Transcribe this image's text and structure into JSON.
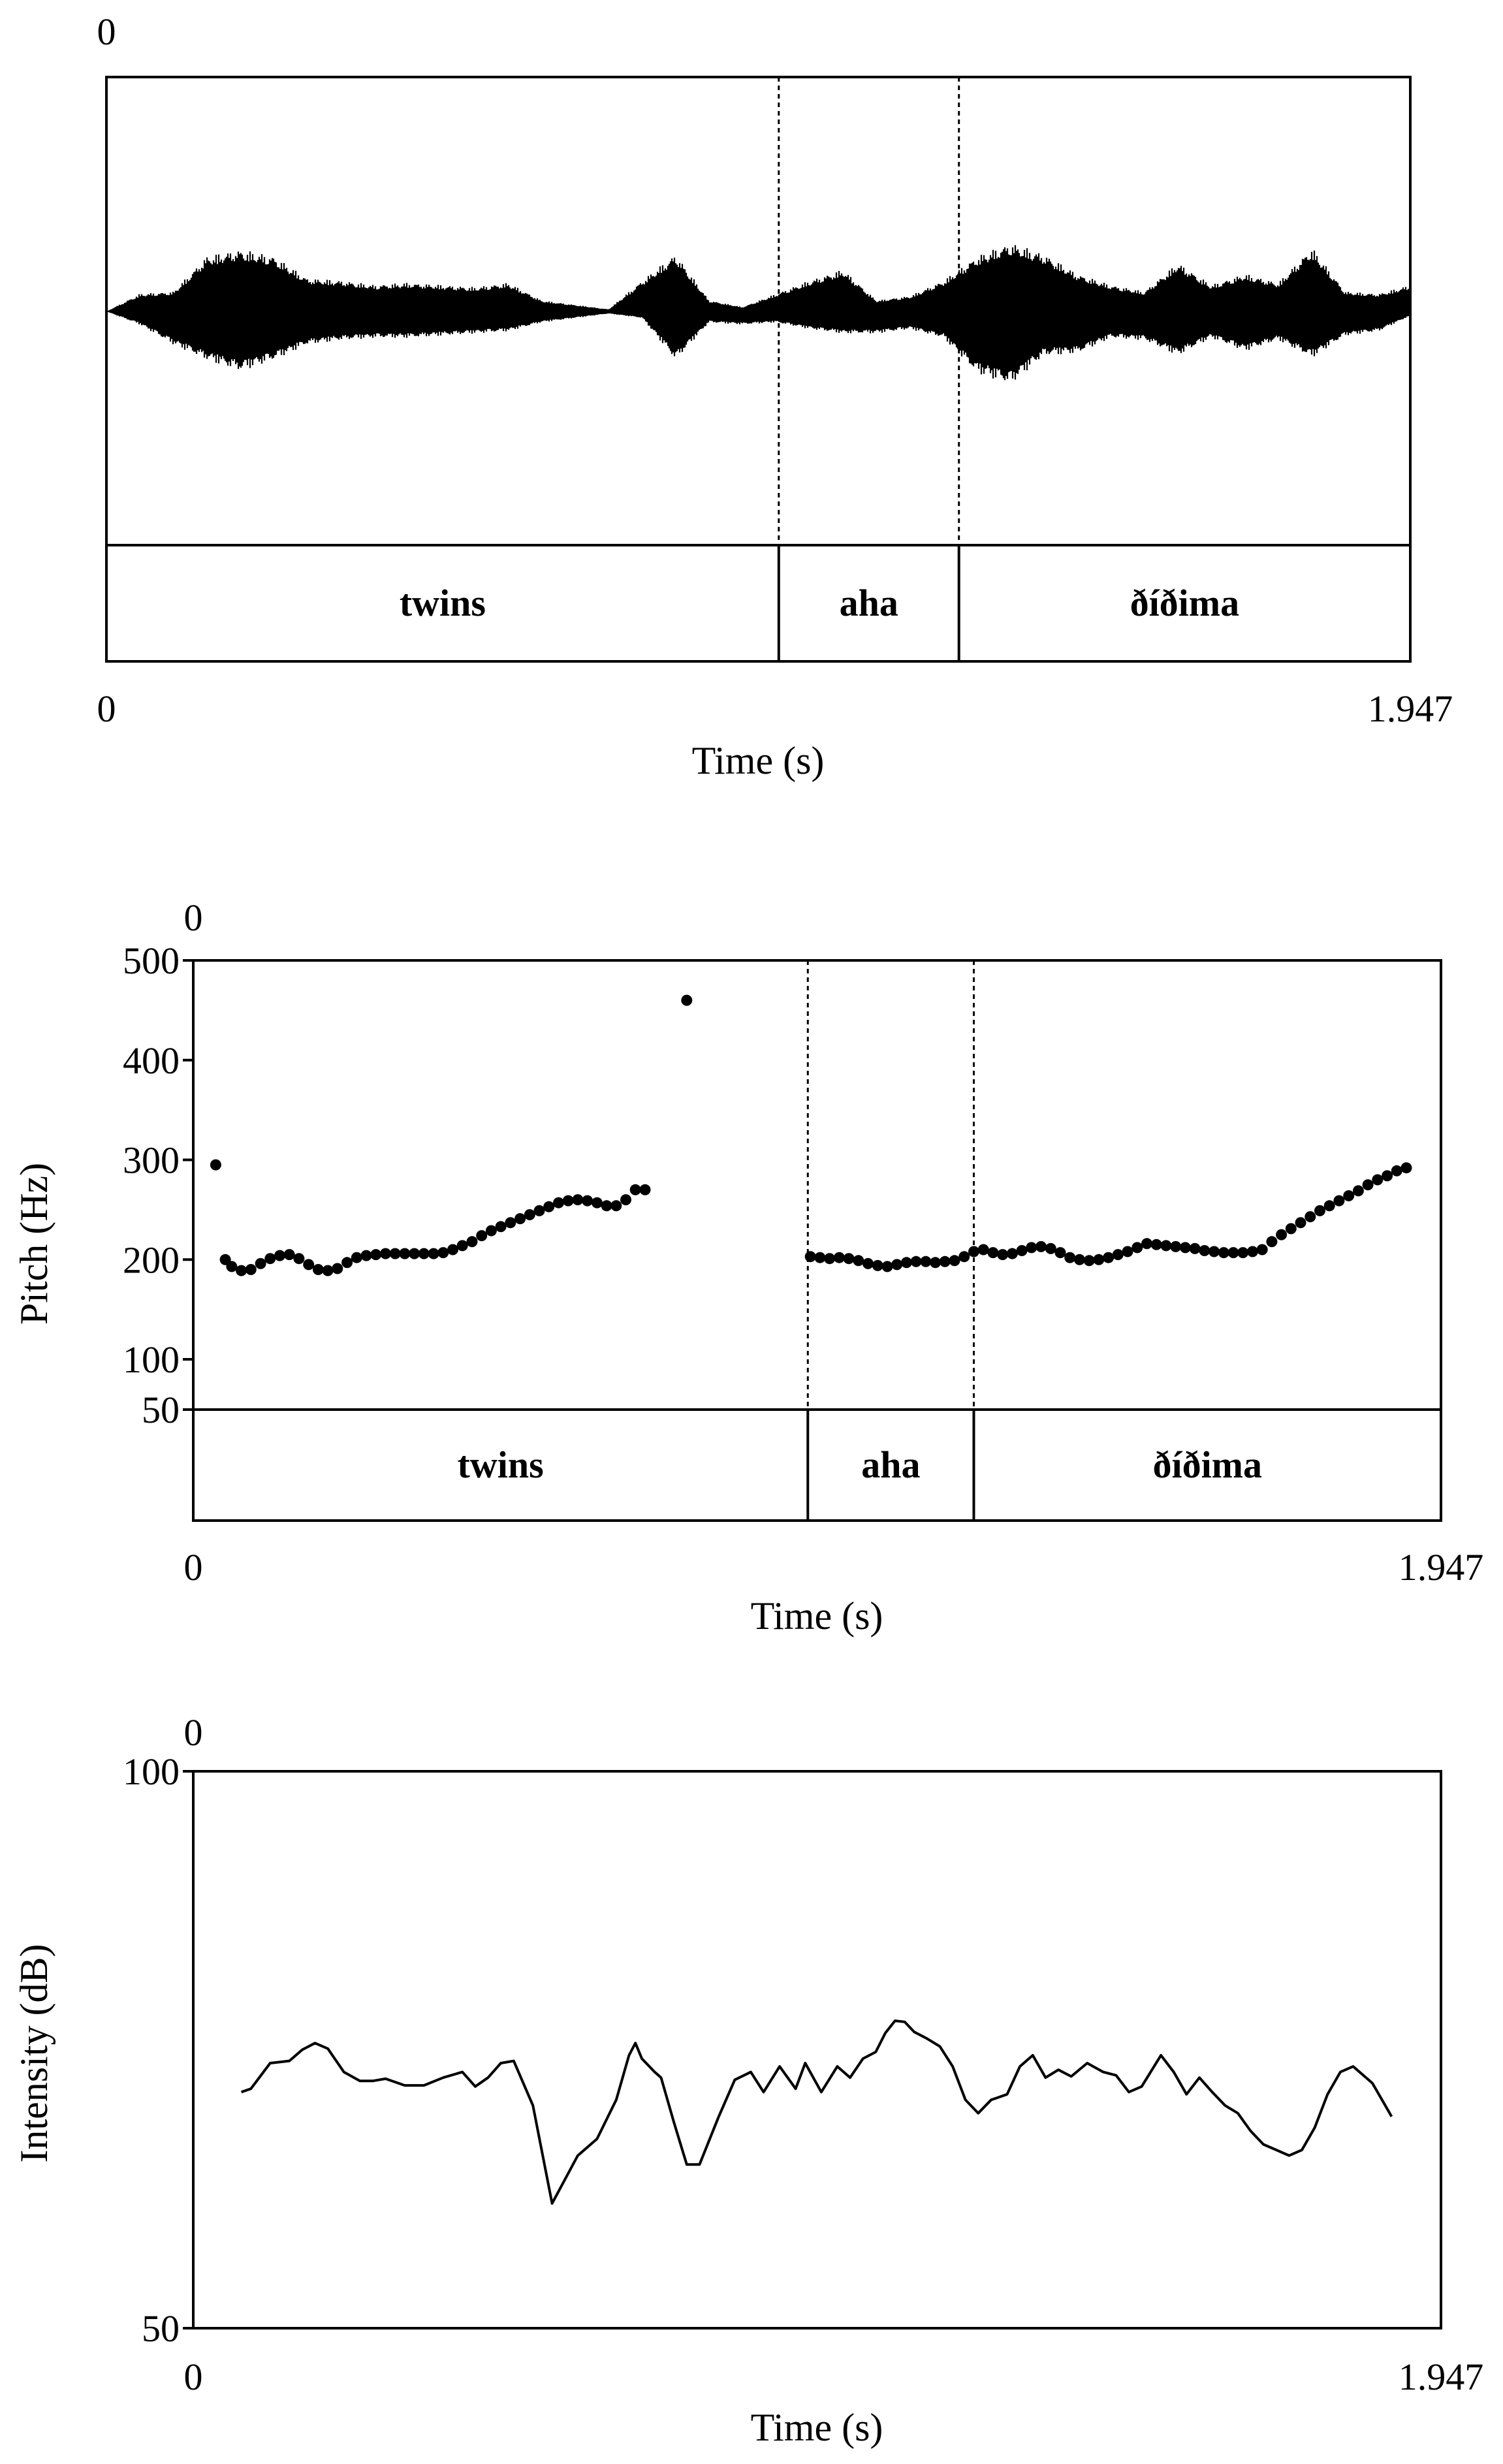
{
  "panels": [
    {
      "type": "waveform",
      "corner_label": "0",
      "x_axis": {
        "min_label": "0",
        "max_label": "1.947",
        "label": "Time (s)"
      },
      "intervals": [
        "twins",
        "aha",
        "ðíðima"
      ]
    },
    {
      "type": "pitch",
      "corner_label": "0",
      "y_axis": {
        "label": "Pitch (Hz)",
        "ticks": [
          "500",
          "400",
          "300",
          "200",
          "100",
          "50"
        ]
      },
      "x_axis": {
        "min_label": "0",
        "max_label": "1.947",
        "label": "Time (s)"
      },
      "intervals": [
        "twins",
        "aha",
        "ðíðima"
      ]
    },
    {
      "type": "intensity",
      "corner_label": "0",
      "y_axis": {
        "label": "Intensity (dB)",
        "max_label": "100",
        "min_label": "50"
      },
      "x_axis": {
        "min_label": "0",
        "max_label": "1.947",
        "label": "Time (s)"
      }
    }
  ],
  "chart_data": [
    {
      "type": "line",
      "title": "",
      "xlabel": "Time (s)",
      "ylabel": "",
      "xlim": [
        0,
        1.947
      ],
      "boundaries": [
        1.004,
        1.273
      ],
      "intervals": [
        {
          "label": "twins",
          "start": 0,
          "end": 1.004
        },
        {
          "label": "aha",
          "start": 1.004,
          "end": 1.273
        },
        {
          "label": "ðíðima",
          "start": 1.273,
          "end": 1.947
        }
      ],
      "envelope": {
        "x": [
          0,
          0.05,
          0.1,
          0.15,
          0.2,
          0.25,
          0.3,
          0.35,
          0.4,
          0.45,
          0.5,
          0.55,
          0.6,
          0.65,
          0.7,
          0.75,
          0.8,
          0.85,
          0.9,
          0.95,
          1.0,
          1.05,
          1.1,
          1.15,
          1.2,
          1.25,
          1.3,
          1.35,
          1.4,
          1.45,
          1.5,
          1.55,
          1.6,
          1.65,
          1.7,
          1.75,
          1.8,
          1.85,
          1.9,
          1.947
        ],
        "upper": [
          0.0,
          0.08,
          0.09,
          0.25,
          0.28,
          0.25,
          0.15,
          0.14,
          0.12,
          0.13,
          0.12,
          0.11,
          0.13,
          0.05,
          0.03,
          0.01,
          0.14,
          0.26,
          0.05,
          0.02,
          0.08,
          0.14,
          0.19,
          0.05,
          0.07,
          0.14,
          0.25,
          0.31,
          0.26,
          0.17,
          0.12,
          0.09,
          0.22,
          0.12,
          0.17,
          0.13,
          0.29,
          0.09,
          0.08,
          0.12
        ],
        "lower": [
          0.0,
          -0.06,
          -0.15,
          -0.22,
          -0.27,
          -0.22,
          -0.15,
          -0.13,
          -0.12,
          -0.12,
          -0.11,
          -0.1,
          -0.09,
          -0.05,
          -0.03,
          -0.01,
          -0.03,
          -0.22,
          -0.05,
          -0.06,
          -0.05,
          -0.08,
          -0.1,
          -0.1,
          -0.08,
          -0.12,
          -0.28,
          -0.33,
          -0.2,
          -0.19,
          -0.12,
          -0.13,
          -0.2,
          -0.12,
          -0.18,
          -0.13,
          -0.21,
          -0.11,
          -0.09,
          -0.02
        ]
      }
    },
    {
      "type": "scatter",
      "title": "",
      "xlabel": "Time (s)",
      "ylabel": "Pitch (Hz)",
      "xlim": [
        0,
        1.947
      ],
      "ylim": [
        50,
        500
      ],
      "y_ticks": [
        50,
        100,
        200,
        300,
        400,
        500
      ],
      "boundaries": [
        0.959,
        1.218
      ],
      "intervals": [
        {
          "label": "twins",
          "start": 0,
          "end": 0.959
        },
        {
          "label": "aha",
          "start": 0.959,
          "end": 1.218
        },
        {
          "label": "ðíðima",
          "start": 1.218,
          "end": 1.947
        }
      ],
      "points": [
        [
          0.035,
          295
        ],
        [
          0.05,
          200
        ],
        [
          0.06,
          193
        ],
        [
          0.075,
          189
        ],
        [
          0.09,
          190
        ],
        [
          0.105,
          196
        ],
        [
          0.12,
          201
        ],
        [
          0.135,
          204
        ],
        [
          0.15,
          205
        ],
        [
          0.165,
          201
        ],
        [
          0.18,
          195
        ],
        [
          0.195,
          190
        ],
        [
          0.21,
          189
        ],
        [
          0.225,
          191
        ],
        [
          0.24,
          197
        ],
        [
          0.255,
          202
        ],
        [
          0.27,
          204
        ],
        [
          0.285,
          205
        ],
        [
          0.3,
          206
        ],
        [
          0.315,
          206
        ],
        [
          0.33,
          206
        ],
        [
          0.345,
          206
        ],
        [
          0.36,
          206
        ],
        [
          0.375,
          206
        ],
        [
          0.39,
          207
        ],
        [
          0.405,
          210
        ],
        [
          0.42,
          214
        ],
        [
          0.435,
          218
        ],
        [
          0.45,
          224
        ],
        [
          0.465,
          229
        ],
        [
          0.48,
          233
        ],
        [
          0.495,
          237
        ],
        [
          0.51,
          241
        ],
        [
          0.525,
          245
        ],
        [
          0.54,
          249
        ],
        [
          0.555,
          253
        ],
        [
          0.57,
          257
        ],
        [
          0.585,
          259
        ],
        [
          0.6,
          260
        ],
        [
          0.615,
          259
        ],
        [
          0.63,
          257
        ],
        [
          0.645,
          254
        ],
        [
          0.66,
          254
        ],
        [
          0.675,
          260
        ],
        [
          0.69,
          270
        ],
        [
          0.705,
          270
        ],
        [
          0.77,
          460
        ],
        [
          0.963,
          203
        ],
        [
          0.978,
          202
        ],
        [
          0.993,
          201
        ],
        [
          1.008,
          202
        ],
        [
          1.023,
          201
        ],
        [
          1.038,
          199
        ],
        [
          1.053,
          196
        ],
        [
          1.068,
          194
        ],
        [
          1.083,
          193
        ],
        [
          1.098,
          195
        ],
        [
          1.113,
          197
        ],
        [
          1.128,
          198
        ],
        [
          1.143,
          198
        ],
        [
          1.158,
          197
        ],
        [
          1.173,
          198
        ],
        [
          1.188,
          199
        ],
        [
          1.203,
          203
        ],
        [
          1.218,
          208
        ],
        [
          1.233,
          210
        ],
        [
          1.248,
          207
        ],
        [
          1.263,
          205
        ],
        [
          1.278,
          206
        ],
        [
          1.293,
          209
        ],
        [
          1.308,
          212
        ],
        [
          1.323,
          213
        ],
        [
          1.338,
          211
        ],
        [
          1.353,
          207
        ],
        [
          1.368,
          202
        ],
        [
          1.383,
          200
        ],
        [
          1.398,
          199
        ],
        [
          1.413,
          200
        ],
        [
          1.428,
          202
        ],
        [
          1.443,
          205
        ],
        [
          1.458,
          208
        ],
        [
          1.473,
          212
        ],
        [
          1.488,
          216
        ],
        [
          1.503,
          215
        ],
        [
          1.518,
          214
        ],
        [
          1.533,
          213
        ],
        [
          1.548,
          212
        ],
        [
          1.563,
          211
        ],
        [
          1.578,
          209
        ],
        [
          1.593,
          208
        ],
        [
          1.608,
          207
        ],
        [
          1.623,
          207
        ],
        [
          1.638,
          207
        ],
        [
          1.653,
          208
        ],
        [
          1.668,
          210
        ],
        [
          1.683,
          218
        ],
        [
          1.698,
          225
        ],
        [
          1.713,
          231
        ],
        [
          1.728,
          237
        ],
        [
          1.743,
          243
        ],
        [
          1.758,
          249
        ],
        [
          1.773,
          254
        ],
        [
          1.788,
          259
        ],
        [
          1.803,
          264
        ],
        [
          1.818,
          269
        ],
        [
          1.833,
          275
        ],
        [
          1.848,
          280
        ],
        [
          1.863,
          284
        ],
        [
          1.878,
          289
        ],
        [
          1.893,
          292
        ]
      ]
    },
    {
      "type": "line",
      "title": "",
      "xlabel": "Time (s)",
      "ylabel": "Intensity (dB)",
      "xlim": [
        0,
        1.947
      ],
      "ylim": [
        50,
        100
      ],
      "x": [
        0.075,
        0.09,
        0.12,
        0.15,
        0.17,
        0.19,
        0.21,
        0.235,
        0.26,
        0.28,
        0.3,
        0.33,
        0.36,
        0.39,
        0.42,
        0.44,
        0.46,
        0.48,
        0.5,
        0.53,
        0.56,
        0.6,
        0.63,
        0.66,
        0.68,
        0.69,
        0.7,
        0.72,
        0.73,
        0.75,
        0.77,
        0.79,
        0.82,
        0.845,
        0.87,
        0.89,
        0.915,
        0.94,
        0.955,
        0.98,
        1.005,
        1.025,
        1.045,
        1.065,
        1.08,
        1.095,
        1.11,
        1.125,
        1.145,
        1.165,
        1.185,
        1.205,
        1.225,
        1.245,
        1.27,
        1.29,
        1.31,
        1.33,
        1.35,
        1.37,
        1.395,
        1.42,
        1.44,
        1.46,
        1.48,
        1.51,
        1.53,
        1.55,
        1.57,
        1.59,
        1.61,
        1.63,
        1.65,
        1.67,
        1.69,
        1.71,
        1.73,
        1.75,
        1.77,
        1.79,
        1.81,
        1.84,
        1.86,
        1.87
      ],
      "y": [
        71.2,
        71.5,
        73.8,
        74.0,
        75.0,
        75.6,
        75.1,
        73.0,
        72.2,
        72.2,
        72.4,
        71.8,
        71.8,
        72.5,
        73.0,
        71.7,
        72.5,
        73.8,
        74.0,
        70.0,
        61.2,
        65.5,
        67.0,
        70.5,
        74.5,
        75.6,
        74.2,
        73.0,
        72.5,
        68.5,
        64.7,
        64.7,
        69.0,
        72.3,
        73.0,
        71.2,
        73.5,
        71.5,
        73.8,
        71.2,
        73.5,
        72.5,
        74.2,
        74.8,
        76.5,
        77.6,
        77.5,
        76.6,
        76.0,
        75.3,
        73.5,
        70.5,
        69.3,
        70.5,
        71.0,
        73.5,
        74.5,
        72.5,
        73.2,
        72.6,
        73.8,
        73.0,
        72.7,
        71.2,
        71.7,
        74.5,
        73.0,
        71.0,
        72.5,
        71.2,
        70.0,
        69.3,
        67.7,
        66.5,
        66.0,
        65.5,
        66.0,
        68.0,
        71.0,
        73.0,
        73.5,
        72.0,
        70.0,
        69.0
      ]
    }
  ]
}
